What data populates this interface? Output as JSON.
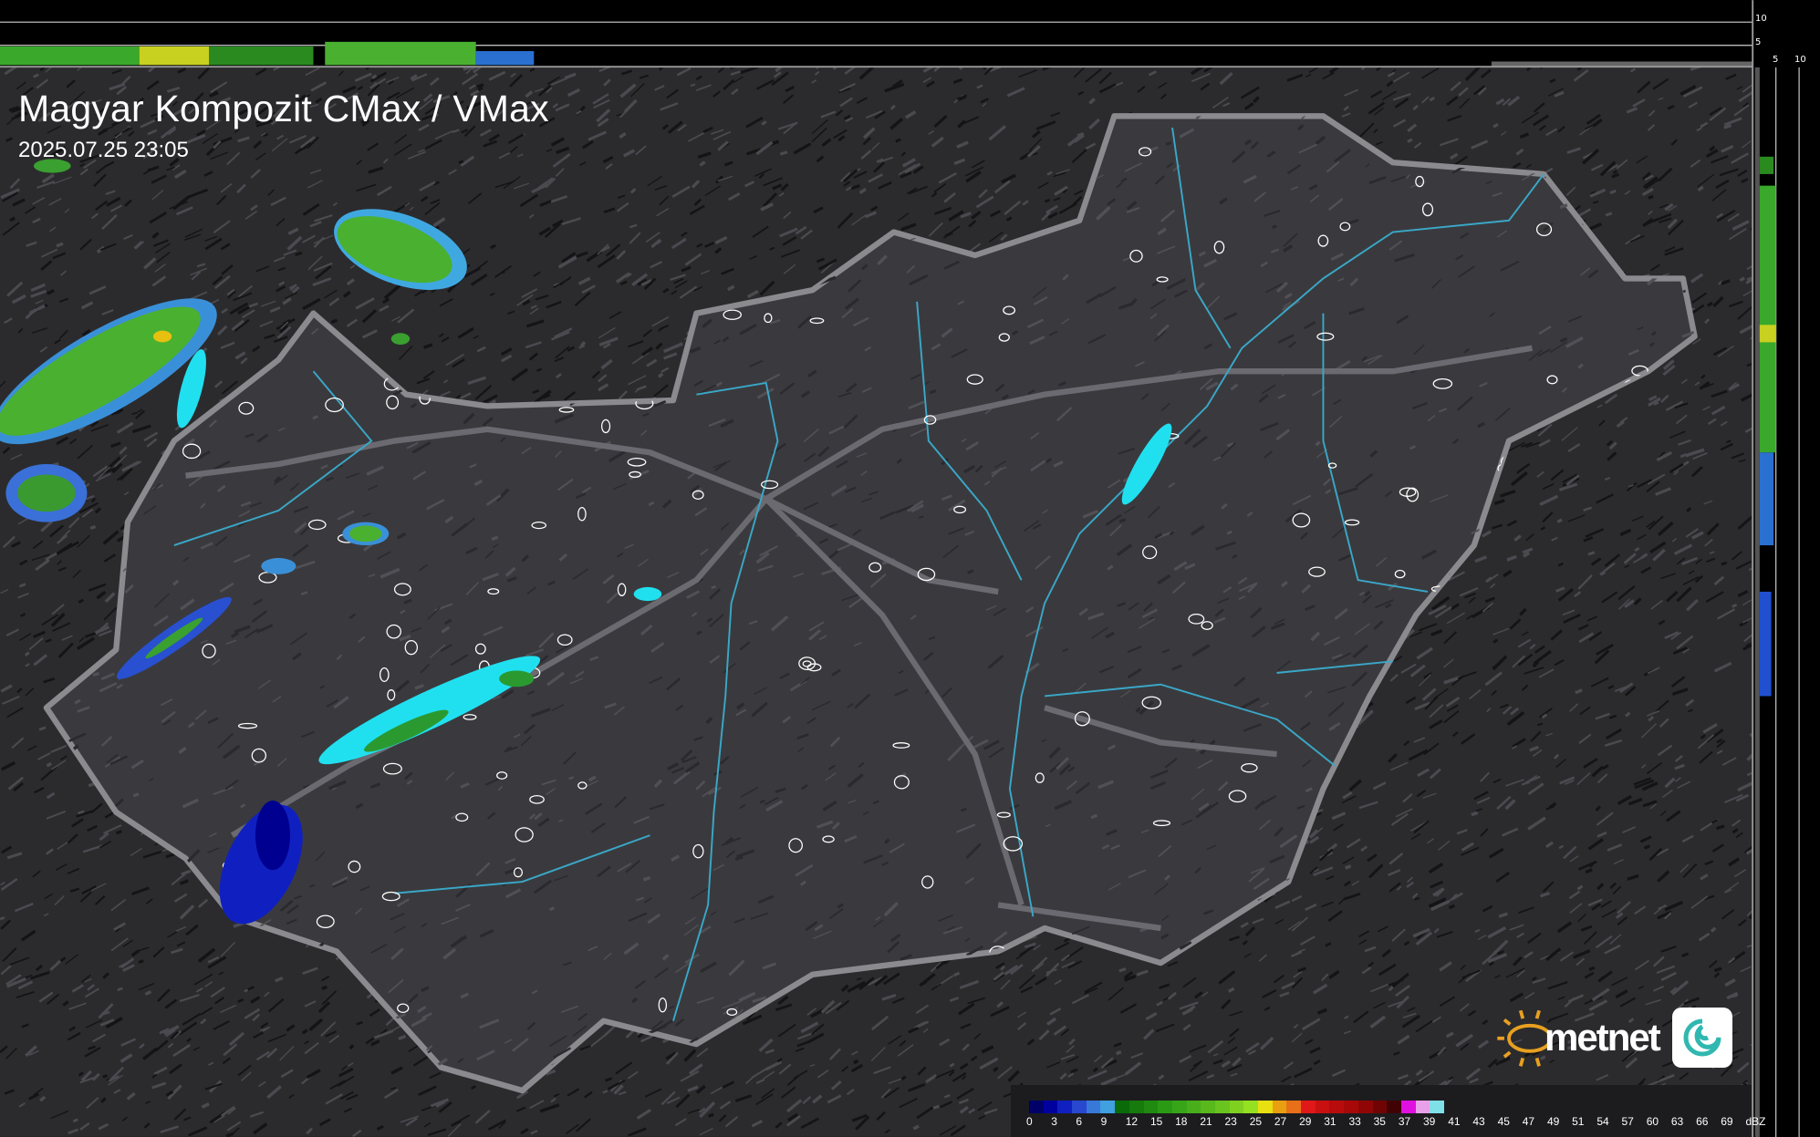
{
  "header": {
    "title": "Magyar Kompozit CMax / VMax",
    "timestamp": "2025.07.25 23:05"
  },
  "top_profile_axis": {
    "ticks": [
      "10",
      "5"
    ]
  },
  "side_profile_axis": {
    "ticks": [
      "5",
      "10"
    ]
  },
  "legend": {
    "unit": "dBZ",
    "labels": [
      "0",
      "3",
      "6",
      "9",
      "12",
      "15",
      "18",
      "21",
      "23",
      "25",
      "27",
      "29",
      "31",
      "33",
      "35",
      "37",
      "39",
      "41",
      "43",
      "45",
      "47",
      "49",
      "51",
      "54",
      "57",
      "60",
      "63",
      "66",
      "69"
    ],
    "colors": [
      "#000068",
      "#00009e",
      "#1020c0",
      "#2848d0",
      "#3878d8",
      "#40a0e0",
      "#0a6a0a",
      "#167a0c",
      "#208a10",
      "#2a9a14",
      "#38a418",
      "#48ae1a",
      "#58b81c",
      "#6ac41e",
      "#80d020",
      "#96e022",
      "#e8e010",
      "#e8a010",
      "#e87018",
      "#e01818",
      "#c81010",
      "#b80c0c",
      "#a80808",
      "#900606",
      "#700404",
      "#400202",
      "#e010e0",
      "#e8a0e8",
      "#80e0e8"
    ]
  },
  "logo": {
    "brand": "metnet"
  },
  "colors": {
    "background": "#2b2b2e",
    "country_fill": "#3a3a3e",
    "border": "#8a8a8f",
    "rivers": "#3aa8c8",
    "lake_precip": "#20e0f0"
  }
}
